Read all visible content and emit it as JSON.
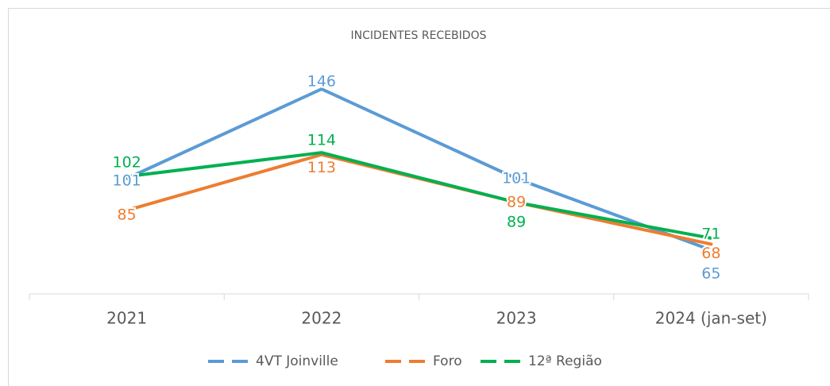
{
  "chart_data": {
    "type": "line",
    "title": "INCIDENTES RECEBIDOS",
    "categories": [
      "2021",
      "2022",
      "2023",
      "2024 (jan-set)"
    ],
    "series": [
      {
        "name": "4VT Joinville",
        "color": "#5b9bd5",
        "values": [
          101,
          146,
          101,
          65
        ]
      },
      {
        "name": "Foro",
        "color": "#ed7d31",
        "values": [
          85,
          113,
          89,
          68
        ]
      },
      {
        "name": "12ª Região",
        "color": "#00b050",
        "values": [
          102,
          114,
          89,
          71
        ]
      }
    ],
    "ylim": [
      43,
      160
    ],
    "legend": "bottom"
  }
}
